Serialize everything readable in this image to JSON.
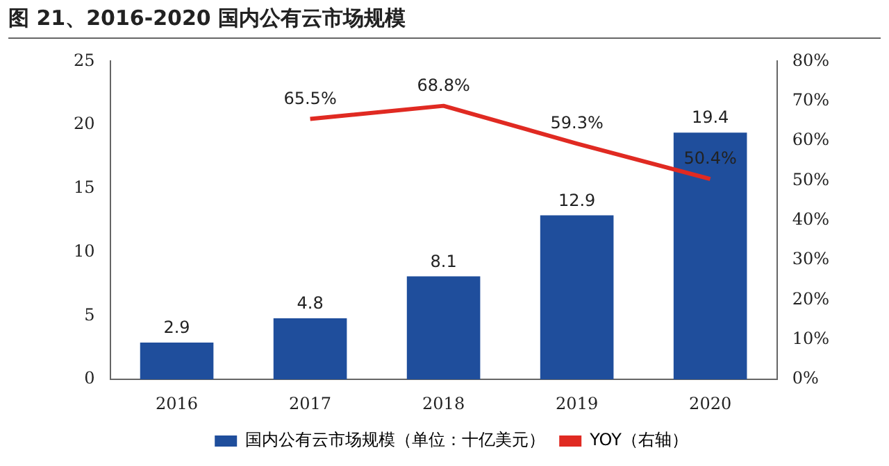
{
  "chart_data": {
    "type": "bar",
    "title": "图 21、2016-2020 国内公有云市场规模",
    "categories": [
      "2016",
      "2017",
      "2018",
      "2019",
      "2020"
    ],
    "series": [
      {
        "name": "国内公有云市场规模（单位：十亿美元）",
        "color": "#1f4e9c",
        "values": [
          2.9,
          4.8,
          8.1,
          12.9,
          19.4
        ],
        "value_labels": [
          "2.9",
          "4.8",
          "8.1",
          "12.9",
          "19.4"
        ]
      },
      {
        "name": "YOY（右轴）",
        "type": "line",
        "axis": "y2",
        "color": "#e02a22",
        "values": [
          null,
          65.5,
          68.8,
          59.3,
          50.4
        ],
        "value_labels": [
          null,
          "65.5%",
          "68.8%",
          "59.3%",
          "50.4%"
        ]
      }
    ],
    "ylim": [
      0,
      25
    ],
    "yticks": [
      0,
      5,
      10,
      15,
      20,
      25
    ],
    "y2lim": [
      0,
      80
    ],
    "y2ticks": [
      {
        "value": 0,
        "label": "0%"
      },
      {
        "value": 10,
        "label": "10%"
      },
      {
        "value": 20,
        "label": "20%"
      },
      {
        "value": 30,
        "label": "30%"
      },
      {
        "value": 40,
        "label": "40%"
      },
      {
        "value": 50,
        "label": "50%"
      },
      {
        "value": 60,
        "label": "60%"
      },
      {
        "value": 70,
        "label": "70%"
      },
      {
        "value": 80,
        "label": "80%"
      }
    ],
    "grid": false,
    "legend": "bottom",
    "marker": "none"
  }
}
